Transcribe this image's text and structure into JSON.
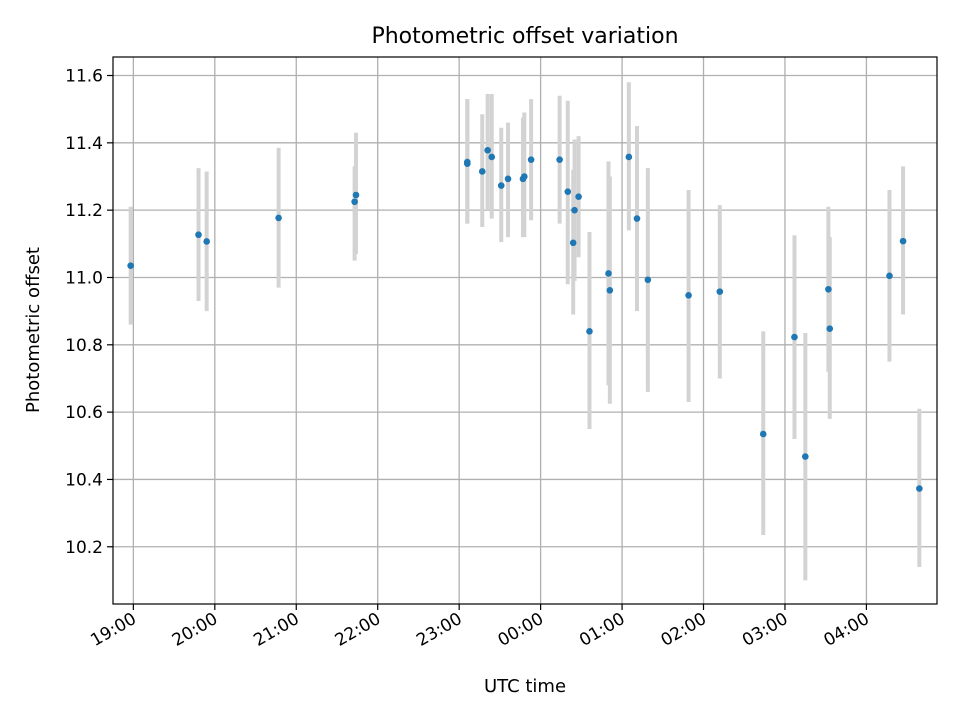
{
  "chart_data": {
    "type": "scatter",
    "title": "Photometric offset variation",
    "xlabel": "UTC time",
    "ylabel": "Photometric offset",
    "grid": true,
    "xlim": [
      "18:45",
      "04:52"
    ],
    "ylim": [
      10.03,
      11.655
    ],
    "x_ticks": [
      "19:00",
      "20:00",
      "21:00",
      "22:00",
      "23:00",
      "00:00",
      "01:00",
      "02:00",
      "03:00",
      "04:00"
    ],
    "y_ticks": [
      "10.2",
      "10.4",
      "10.6",
      "10.8",
      "11.0",
      "11.2",
      "11.4",
      "11.6"
    ],
    "colors": {
      "points": "#1f77b4",
      "error_bars": "#d3d3d3",
      "grid": "#b0b0b0"
    },
    "points": [
      {
        "x": "18:58",
        "y": 11.035,
        "yerr_low": 10.86,
        "yerr_high": 11.21
      },
      {
        "x": "19:48",
        "y": 11.127,
        "yerr_low": 10.93,
        "yerr_high": 11.325
      },
      {
        "x": "19:54",
        "y": 11.107,
        "yerr_low": 10.9,
        "yerr_high": 11.315
      },
      {
        "x": "20:47",
        "y": 11.177,
        "yerr_low": 10.97,
        "yerr_high": 11.385
      },
      {
        "x": "21:43",
        "y": 11.225,
        "yerr_low": 11.05,
        "yerr_high": 11.33
      },
      {
        "x": "21:44",
        "y": 11.245,
        "yerr_low": 11.07,
        "yerr_high": 11.43
      },
      {
        "x": "23:06",
        "y": 11.338,
        "yerr_low": 11.16,
        "yerr_high": 11.53
      },
      {
        "x": "23:06",
        "y": 11.343,
        "yerr_low": 11.16,
        "yerr_high": 11.53
      },
      {
        "x": "23:17",
        "y": 11.315,
        "yerr_low": 11.15,
        "yerr_high": 11.485
      },
      {
        "x": "23:21",
        "y": 11.378,
        "yerr_low": 11.2,
        "yerr_high": 11.545
      },
      {
        "x": "23:24",
        "y": 11.358,
        "yerr_low": 11.175,
        "yerr_high": 11.545
      },
      {
        "x": "23:31",
        "y": 11.273,
        "yerr_low": 11.105,
        "yerr_high": 11.445
      },
      {
        "x": "23:36",
        "y": 11.293,
        "yerr_low": 11.12,
        "yerr_high": 11.46
      },
      {
        "x": "23:47",
        "y": 11.293,
        "yerr_low": 11.12,
        "yerr_high": 11.475
      },
      {
        "x": "23:48",
        "y": 11.3,
        "yerr_low": 11.12,
        "yerr_high": 11.49
      },
      {
        "x": "23:53",
        "y": 11.35,
        "yerr_low": 11.17,
        "yerr_high": 11.53
      },
      {
        "x": "00:14",
        "y": 11.35,
        "yerr_low": 11.16,
        "yerr_high": 11.54
      },
      {
        "x": "00:20",
        "y": 11.255,
        "yerr_low": 10.98,
        "yerr_high": 11.525
      },
      {
        "x": "00:24",
        "y": 11.103,
        "yerr_low": 10.89,
        "yerr_high": 11.32
      },
      {
        "x": "00:25",
        "y": 11.2,
        "yerr_low": 10.99,
        "yerr_high": 11.41
      },
      {
        "x": "00:28",
        "y": 11.24,
        "yerr_low": 11.06,
        "yerr_high": 11.42
      },
      {
        "x": "00:36",
        "y": 10.84,
        "yerr_low": 10.55,
        "yerr_high": 11.135
      },
      {
        "x": "00:50",
        "y": 11.012,
        "yerr_low": 10.68,
        "yerr_high": 11.345
      },
      {
        "x": "00:51",
        "y": 10.962,
        "yerr_low": 10.625,
        "yerr_high": 11.3
      },
      {
        "x": "01:05",
        "y": 11.358,
        "yerr_low": 11.14,
        "yerr_high": 11.58
      },
      {
        "x": "01:11",
        "y": 11.175,
        "yerr_low": 10.9,
        "yerr_high": 11.45
      },
      {
        "x": "01:19",
        "y": 10.993,
        "yerr_low": 10.66,
        "yerr_high": 11.325
      },
      {
        "x": "01:49",
        "y": 10.947,
        "yerr_low": 10.63,
        "yerr_high": 11.26
      },
      {
        "x": "02:12",
        "y": 10.958,
        "yerr_low": 10.7,
        "yerr_high": 11.215
      },
      {
        "x": "02:44",
        "y": 10.535,
        "yerr_low": 10.235,
        "yerr_high": 10.84
      },
      {
        "x": "03:07",
        "y": 10.823,
        "yerr_low": 10.52,
        "yerr_high": 11.125
      },
      {
        "x": "03:15",
        "y": 10.468,
        "yerr_low": 10.1,
        "yerr_high": 10.835
      },
      {
        "x": "03:32",
        "y": 10.965,
        "yerr_low": 10.72,
        "yerr_high": 11.21
      },
      {
        "x": "03:33",
        "y": 10.848,
        "yerr_low": 10.58,
        "yerr_high": 11.12
      },
      {
        "x": "04:17",
        "y": 11.005,
        "yerr_low": 10.75,
        "yerr_high": 11.26
      },
      {
        "x": "04:27",
        "y": 11.108,
        "yerr_low": 10.89,
        "yerr_high": 11.33
      },
      {
        "x": "04:39",
        "y": 10.373,
        "yerr_low": 10.14,
        "yerr_high": 10.61
      }
    ]
  }
}
